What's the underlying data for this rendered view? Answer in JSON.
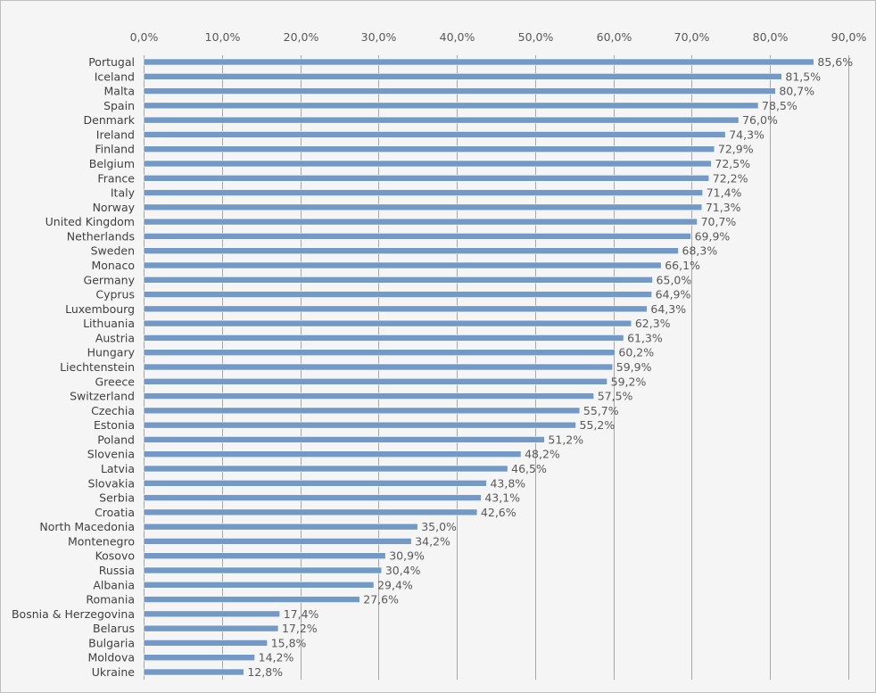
{
  "chart_data": {
    "type": "bar",
    "orientation": "horizontal",
    "title": "",
    "xlabel": "",
    "ylabel": "",
    "xlim": [
      0,
      90
    ],
    "x_ticks": [
      "0,0%",
      "10,0%",
      "20,0%",
      "30,0%",
      "40,0%",
      "50,0%",
      "60,0%",
      "70,0%",
      "80,0%",
      "90,0%"
    ],
    "x_tick_values": [
      0,
      10,
      20,
      30,
      40,
      50,
      60,
      70,
      80,
      90
    ],
    "x_axis_position": "top",
    "grid": "vertical",
    "bar_color": "#7399c6",
    "categories": [
      "Portugal",
      "Iceland",
      "Malta",
      "Spain",
      "Denmark",
      "Ireland",
      "Finland",
      "Belgium",
      "France",
      "Italy",
      "Norway",
      "United Kingdom",
      "Netherlands",
      "Sweden",
      "Monaco",
      "Germany",
      "Cyprus",
      "Luxembourg",
      "Lithuania",
      "Austria",
      "Hungary",
      "Liechtenstein",
      "Greece",
      "Switzerland",
      "Czechia",
      "Estonia",
      "Poland",
      "Slovenia",
      "Latvia",
      "Slovakia",
      "Serbia",
      "Croatia",
      "North Macedonia",
      "Montenegro",
      "Kosovo",
      "Russia",
      "Albania",
      "Romania",
      "Bosnia & Herzegovina",
      "Belarus",
      "Bulgaria",
      "Moldova",
      "Ukraine"
    ],
    "values": [
      85.6,
      81.5,
      80.7,
      78.5,
      76.0,
      74.3,
      72.9,
      72.5,
      72.2,
      71.4,
      71.3,
      70.7,
      69.9,
      68.3,
      66.1,
      65.0,
      64.9,
      64.3,
      62.3,
      61.3,
      60.2,
      59.9,
      59.2,
      57.5,
      55.7,
      55.2,
      51.2,
      48.2,
      46.5,
      43.8,
      43.1,
      42.6,
      35.0,
      34.2,
      30.9,
      30.4,
      29.4,
      27.6,
      17.4,
      17.2,
      15.8,
      14.2,
      12.8
    ],
    "data_labels": [
      "85,6%",
      "81,5%",
      "80,7%",
      "78,5%",
      "76,0%",
      "74,3%",
      "72,9%",
      "72,5%",
      "72,2%",
      "71,4%",
      "71,3%",
      "70,7%",
      "69,9%",
      "68,3%",
      "66,1%",
      "65,0%",
      "64,9%",
      "64,3%",
      "62,3%",
      "61,3%",
      "60,2%",
      "59,9%",
      "59,2%",
      "57,5%",
      "55,7%",
      "55,2%",
      "51,2%",
      "48,2%",
      "46,5%",
      "43,8%",
      "43,1%",
      "42,6%",
      "35,0%",
      "34,2%",
      "30,9%",
      "30,4%",
      "29,4%",
      "27,6%",
      "17,4%",
      "17,2%",
      "15,8%",
      "14,2%",
      "12,8%"
    ]
  }
}
